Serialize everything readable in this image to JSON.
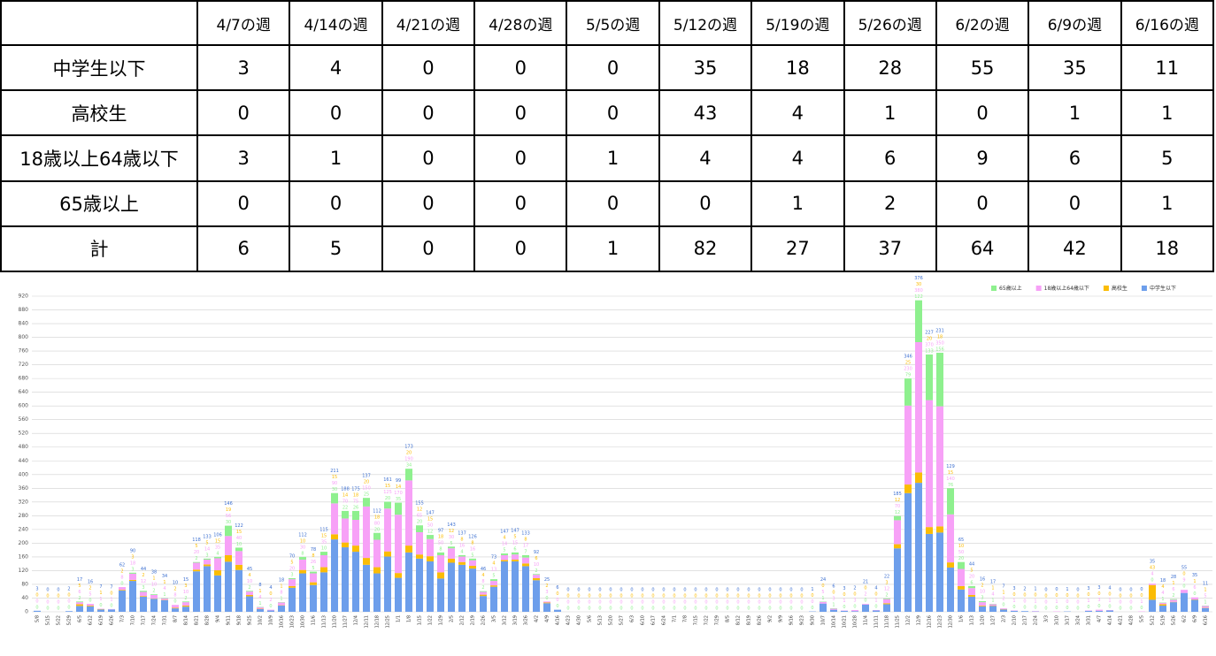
{
  "table": {
    "columns": [
      "4/7の週",
      "4/14の週",
      "4/21の週",
      "4/28の週",
      "5/5の週",
      "5/12の週",
      "5/19の週",
      "5/26の週",
      "6/2の週",
      "6/9の週",
      "6/16の週"
    ],
    "rows": [
      {
        "label": "中学生以下",
        "values": [
          3,
          4,
          0,
          0,
          0,
          35,
          18,
          28,
          55,
          35,
          11
        ]
      },
      {
        "label": "高校生",
        "values": [
          0,
          0,
          0,
          0,
          0,
          43,
          4,
          1,
          0,
          1,
          1
        ]
      },
      {
        "label": "18歳以上64歳以下",
        "values": [
          3,
          1,
          0,
          0,
          1,
          4,
          4,
          6,
          9,
          6,
          5
        ]
      },
      {
        "label": "65歳以上",
        "values": [
          0,
          0,
          0,
          0,
          0,
          0,
          1,
          2,
          0,
          0,
          1
        ]
      },
      {
        "label": "計",
        "values": [
          6,
          5,
          0,
          0,
          1,
          82,
          27,
          37,
          64,
          42,
          18
        ]
      }
    ]
  },
  "chart_data": {
    "type": "stacked_bar",
    "legend": "top-right",
    "grid": true,
    "ylim": [
      0,
      920
    ],
    "yticks": [
      0,
      40,
      80,
      120,
      160,
      200,
      240,
      280,
      320,
      360,
      400,
      440,
      480,
      520,
      560,
      600,
      640,
      680,
      720,
      760,
      800,
      840,
      880,
      920
    ],
    "categories": [
      "5/8",
      "5/15",
      "5/22",
      "5/29",
      "6/5",
      "6/12",
      "6/19",
      "6/26",
      "7/3",
      "7/10",
      "7/17",
      "7/24",
      "7/31",
      "8/7",
      "8/14",
      "8/21",
      "8/28",
      "9/4",
      "9/11",
      "9/18",
      "9/25",
      "10/2",
      "10/9",
      "10/16",
      "10/23",
      "10/30",
      "11/6",
      "11/13",
      "11/20",
      "11/27",
      "12/4",
      "12/11",
      "12/18",
      "12/25",
      "1/1",
      "1/8",
      "1/15",
      "1/22",
      "1/29",
      "2/5",
      "2/12",
      "2/19",
      "2/26",
      "3/5",
      "3/12",
      "3/19",
      "3/26",
      "4/2",
      "4/9",
      "4/16",
      "4/23",
      "4/30",
      "5/6",
      "5/13",
      "5/20",
      "5/27",
      "6/3",
      "6/10",
      "6/17",
      "6/24",
      "7/1",
      "7/8",
      "7/15",
      "7/22",
      "7/29",
      "8/5",
      "8/12",
      "8/19",
      "8/26",
      "9/2",
      "9/9",
      "9/16",
      "9/23",
      "9/30",
      "10/7",
      "10/14",
      "10/21",
      "10/28",
      "11/4",
      "11/11",
      "11/18",
      "11/25",
      "12/2",
      "12/9",
      "12/16",
      "12/23",
      "12/30",
      "1/6",
      "1/13",
      "1/20",
      "1/27",
      "2/3",
      "2/10",
      "2/17",
      "2/24",
      "3/3",
      "3/10",
      "3/17",
      "3/24",
      "3/31",
      "4/7",
      "4/14",
      "4/21",
      "4/28",
      "5/5",
      "5/12",
      "5/19",
      "5/26",
      "6/2",
      "6/9",
      "6/16"
    ],
    "series": [
      {
        "name": "中学生以下",
        "color": "#6d9eeb",
        "values": [
          3,
          0,
          0,
          2,
          17,
          16,
          7,
          7,
          62,
          90,
          44,
          38,
          34,
          10,
          15,
          118,
          133,
          106,
          146,
          122,
          45,
          8,
          4,
          18,
          70,
          112,
          78,
          115,
          211,
          188,
          175,
          137,
          112,
          161,
          99,
          173,
          155,
          147,
          97,
          143,
          137,
          126,
          46,
          73,
          147,
          147,
          133,
          92,
          25,
          6,
          0,
          0,
          0,
          0,
          0,
          0,
          0,
          0,
          0,
          0,
          0,
          0,
          0,
          0,
          0,
          0,
          0,
          0,
          0,
          0,
          0,
          0,
          0,
          1,
          24,
          6,
          3,
          2,
          21,
          4,
          22,
          185,
          346,
          376,
          227,
          231,
          129,
          65,
          44,
          16,
          17,
          7,
          3,
          2,
          1,
          0,
          0,
          1,
          0,
          3,
          3,
          4,
          0,
          0,
          0,
          35,
          18,
          28,
          55,
          35,
          11
        ]
      },
      {
        "name": "高校生",
        "color": "#fbbc04",
        "values": [
          0,
          0,
          0,
          0,
          5,
          2,
          1,
          0,
          2,
          3,
          2,
          1,
          1,
          2,
          3,
          5,
          5,
          15,
          19,
          15,
          4,
          1,
          0,
          1,
          5,
          10,
          8,
          15,
          15,
          14,
          18,
          20,
          18,
          15,
          14,
          20,
          12,
          15,
          18,
          12,
          8,
          8,
          4,
          4,
          4,
          5,
          8,
          6,
          2,
          0,
          0,
          0,
          0,
          0,
          0,
          0,
          0,
          0,
          0,
          0,
          0,
          0,
          0,
          0,
          0,
          0,
          0,
          0,
          0,
          0,
          0,
          0,
          0,
          0,
          0,
          0,
          0,
          0,
          0,
          0,
          3,
          12,
          25,
          30,
          20,
          18,
          15,
          10,
          5,
          2,
          1,
          1,
          0,
          0,
          0,
          0,
          0,
          0,
          0,
          0,
          0,
          0,
          0,
          0,
          0,
          43,
          4,
          1,
          0,
          1,
          1
        ]
      },
      {
        "name": "18歳以上64歳以下",
        "color": "#f7a1f7",
        "values": [
          0,
          0,
          0,
          0,
          6,
          5,
          1,
          1,
          8,
          18,
          12,
          10,
          4,
          8,
          10,
          20,
          14,
          35,
          56,
          40,
          10,
          4,
          2,
          8,
          20,
          30,
          26,
          35,
          90,
          70,
          75,
          150,
          80,
          125,
          170,
          190,
          65,
          50,
          50,
          30,
          16,
          16,
          8,
          13,
          14,
          15,
          17,
          10,
          3,
          0,
          0,
          0,
          0,
          0,
          0,
          0,
          0,
          0,
          0,
          0,
          0,
          0,
          0,
          0,
          0,
          0,
          0,
          0,
          0,
          0,
          0,
          0,
          0,
          0,
          5,
          3,
          1,
          3,
          2,
          1,
          12,
          70,
          230,
          380,
          370,
          350,
          140,
          50,
          20,
          10,
          4,
          2,
          1,
          0,
          1,
          0,
          1,
          0,
          0,
          1,
          3,
          1,
          0,
          0,
          1,
          4,
          4,
          6,
          9,
          6,
          5
        ]
      },
      {
        "name": "65歳以上",
        "color": "#8ef08e",
        "values": [
          0,
          0,
          0,
          0,
          2,
          0,
          0,
          0,
          0,
          3,
          3,
          2,
          1,
          0,
          2,
          2,
          3,
          4,
          30,
          10,
          2,
          1,
          0,
          1,
          3,
          8,
          5,
          10,
          30,
          22,
          26,
          25,
          20,
          20,
          35,
          34,
          20,
          12,
          8,
          5,
          4,
          5,
          2,
          5,
          5,
          6,
          7,
          2,
          0,
          0,
          0,
          0,
          0,
          0,
          0,
          0,
          0,
          0,
          0,
          0,
          0,
          0,
          0,
          0,
          0,
          0,
          0,
          0,
          0,
          0,
          0,
          0,
          0,
          0,
          1,
          1,
          0,
          0,
          0,
          0,
          2,
          12,
          79,
          122,
          133,
          156,
          76,
          20,
          6,
          3,
          1,
          0,
          0,
          0,
          0,
          0,
          0,
          0,
          0,
          0,
          0,
          0,
          0,
          0,
          0,
          0,
          1,
          2,
          0,
          0,
          1
        ]
      }
    ]
  }
}
